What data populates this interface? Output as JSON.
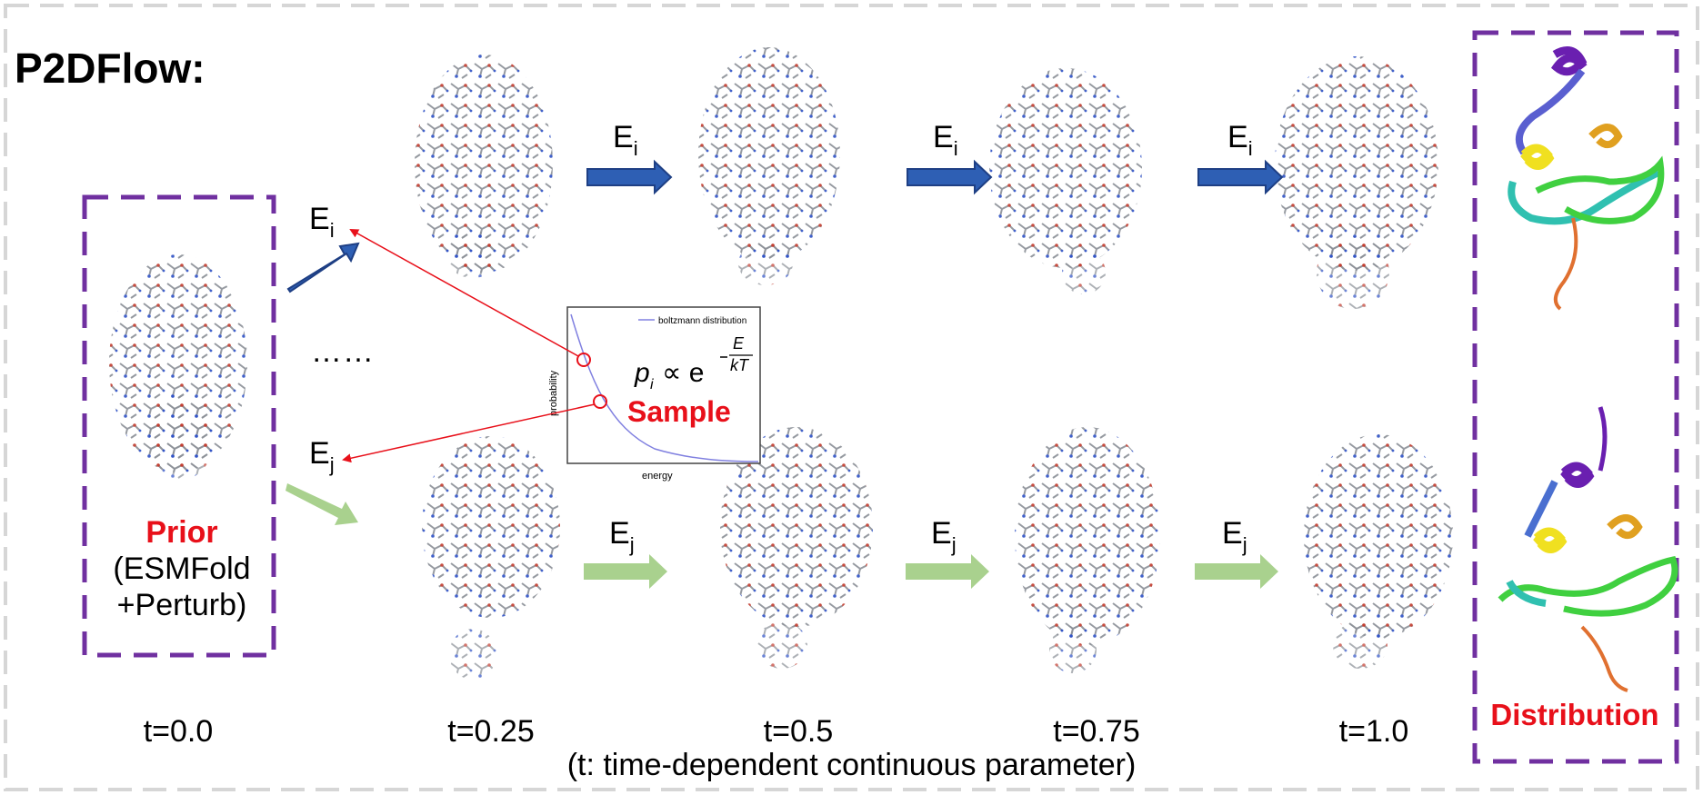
{
  "title": "P2DFlow:",
  "time_labels": [
    "t=0.0",
    "t=0.25",
    "t=0.5",
    "t=0.75",
    "t=1.0"
  ],
  "caption": "(t: time-dependent continuous parameter)",
  "prior": {
    "label": "Prior",
    "line1": "(ESMFold",
    "line2": "+Perturb)"
  },
  "ellipsis": "……",
  "energy_i": {
    "base": "E",
    "sub": "i"
  },
  "energy_j": {
    "base": "E",
    "sub": "j"
  },
  "inset": {
    "legend": "boltzmann distribution",
    "ylabel": "probability",
    "xlabel": "energy",
    "formula_lhs": "p",
    "formula_sub": "i",
    "formula_rel": "∝ e",
    "formula_exp_num": "E",
    "formula_exp_den": "kT",
    "sample": "Sample"
  },
  "distribution_label": "Distribution",
  "colors": {
    "purple": "#7030a0",
    "red": "#e8101a",
    "blue_arrow": "#2e5fb4",
    "green_arrow": "#a9d18e",
    "boltzmann_curve": "#8080e0"
  }
}
